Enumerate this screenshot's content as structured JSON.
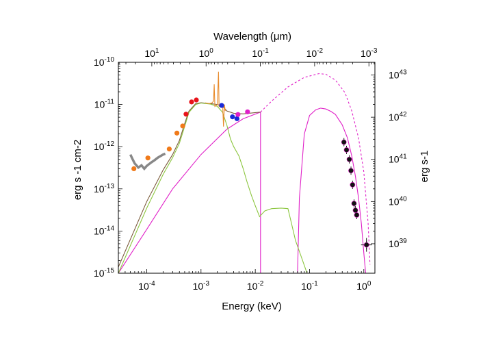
{
  "chart_data": {
    "type": "line",
    "title": "",
    "xlabel": "Energy (keV)",
    "ylabel": "erg s -1 cm-2",
    "top_xlabel": "Wavelength (μm)",
    "right_ylabel": "erg s-1",
    "x_scale": "log",
    "y_scale": "log",
    "xlim": [
      3e-05,
      1.6
    ],
    "ylim": [
      1e-15,
      1e-10
    ],
    "x_ticks": [
      {
        "value": 0.0001,
        "base": "10",
        "exp": "-4"
      },
      {
        "value": 0.001,
        "base": "10",
        "exp": "-3"
      },
      {
        "value": 0.01,
        "base": "10",
        "exp": "-2"
      },
      {
        "value": 0.1,
        "base": "10",
        "exp": "-1"
      },
      {
        "value": 1,
        "base": "10",
        "exp": "0"
      }
    ],
    "y_ticks": [
      {
        "value": 1e-15,
        "base": "10",
        "exp": "-15"
      },
      {
        "value": 1e-14,
        "base": "10",
        "exp": "-14"
      },
      {
        "value": 1e-13,
        "base": "10",
        "exp": "-13"
      },
      {
        "value": 1e-12,
        "base": "10",
        "exp": "-12"
      },
      {
        "value": 1e-11,
        "base": "10",
        "exp": "-11"
      },
      {
        "value": 1e-10,
        "base": "10",
        "exp": "-10"
      }
    ],
    "top_ticks": [
      {
        "energy": 0.000124,
        "base": "10",
        "exp": "1"
      },
      {
        "energy": 0.00124,
        "base": "10",
        "exp": "0"
      },
      {
        "energy": 0.0124,
        "base": "10",
        "exp": "-1"
      },
      {
        "energy": 0.124,
        "base": "10",
        "exp": "-2"
      },
      {
        "energy": 1.24,
        "base": "10",
        "exp": "-3"
      }
    ],
    "right_ticks": [
      {
        "flux": 5e-15,
        "base": "10",
        "exp": "39"
      },
      {
        "flux": 5e-14,
        "base": "10",
        "exp": "40"
      },
      {
        "flux": 5e-13,
        "base": "10",
        "exp": "41"
      },
      {
        "flux": 5e-12,
        "base": "10",
        "exp": "42"
      },
      {
        "flux": 5e-11,
        "base": "10",
        "exp": "43"
      }
    ],
    "series": [
      {
        "key": "disk_model",
        "color": "#e020c8",
        "dash": false,
        "points": [
          [
            3e-05,
            1e-15
          ],
          [
            0.0001,
            1.1e-14
          ],
          [
            0.0003,
            1e-13
          ],
          [
            0.001,
            6.5e-13
          ],
          [
            0.003,
            2.6e-12
          ],
          [
            0.006,
            4.6e-12
          ],
          [
            0.0125,
            6.6e-12
          ]
        ]
      },
      {
        "key": "disk_model_extrapolated",
        "color": "#e020c8",
        "dash": true,
        "points": [
          [
            0.0125,
            6.6e-12
          ],
          [
            0.02,
            1.2e-11
          ],
          [
            0.04,
            2.6e-11
          ],
          [
            0.08,
            4.4e-11
          ],
          [
            0.15,
            5.4e-11
          ],
          [
            0.2,
            5.2e-11
          ],
          [
            0.3,
            3.8e-11
          ],
          [
            0.45,
            1.9e-11
          ],
          [
            0.6,
            7e-12
          ],
          [
            0.8,
            1.6e-12
          ],
          [
            1.0,
            2.5e-13
          ],
          [
            1.2,
            1.5e-14
          ],
          [
            1.3,
            1.6e-15
          ]
        ]
      },
      {
        "key": "disk_drop",
        "color": "#e020c8",
        "dash": false,
        "points": [
          [
            0.0125,
            6.6e-12
          ],
          [
            0.0125,
            1e-15
          ]
        ]
      },
      {
        "key": "disk_absorbed",
        "color": "#e020c8",
        "dash": false,
        "points": [
          [
            0.06,
            1e-15
          ],
          [
            0.065,
            6e-14
          ],
          [
            0.08,
            2e-12
          ],
          [
            0.1,
            5.5e-12
          ],
          [
            0.13,
            7.5e-12
          ],
          [
            0.16,
            8.2e-12
          ],
          [
            0.2,
            7.8e-12
          ],
          [
            0.25,
            6.8e-12
          ],
          [
            0.3,
            5.8e-12
          ],
          [
            0.4,
            3.3e-12
          ],
          [
            0.5,
            1.6e-12
          ],
          [
            0.6,
            6e-13
          ],
          [
            0.7,
            2e-13
          ],
          [
            0.8,
            6e-14
          ],
          [
            0.9,
            1.5e-14
          ],
          [
            1.0,
            3e-15
          ],
          [
            1.08,
            1e-15
          ]
        ]
      },
      {
        "key": "host_model_dark",
        "color": "#7a5a3a",
        "dash": false,
        "points": [
          [
            3e-05,
            1.4e-15
          ],
          [
            0.0001,
            5e-14
          ],
          [
            0.0002,
            2.8e-13
          ],
          [
            0.0003,
            6.5e-13
          ],
          [
            0.0004,
            1.4e-12
          ],
          [
            0.0005,
            3.5e-12
          ],
          [
            0.0006,
            7e-12
          ],
          [
            0.0008,
            1.05e-11
          ],
          [
            0.001,
            1.1e-11
          ],
          [
            0.0015,
            1.05e-11
          ],
          [
            0.002,
            1e-11
          ],
          [
            0.0025,
            9e-12
          ],
          [
            0.003,
            7e-12
          ],
          [
            0.004,
            6.2e-12
          ],
          [
            0.006,
            6e-12
          ],
          [
            0.0125,
            6.6e-12
          ]
        ]
      },
      {
        "key": "host_model_green",
        "color": "#8cc63f",
        "dash": false,
        "points": [
          [
            3e-05,
            1e-15
          ],
          [
            0.0001,
            3.5e-14
          ],
          [
            0.0002,
            2.2e-13
          ],
          [
            0.0003,
            5.5e-13
          ],
          [
            0.0004,
            1.2e-12
          ],
          [
            0.0005,
            3e-12
          ],
          [
            0.0006,
            6.5e-12
          ],
          [
            0.0008,
            1e-11
          ],
          [
            0.001,
            1.08e-11
          ],
          [
            0.0015,
            1.02e-11
          ],
          [
            0.002,
            9e-12
          ],
          [
            0.0025,
            6.5e-12
          ],
          [
            0.003,
            3.2e-12
          ],
          [
            0.0035,
            1.5e-12
          ],
          [
            0.004,
            1e-12
          ],
          [
            0.005,
            6e-13
          ],
          [
            0.006,
            3e-13
          ],
          [
            0.007,
            1.5e-13
          ],
          [
            0.0085,
            7e-14
          ],
          [
            0.01,
            4e-14
          ],
          [
            0.012,
            2.2e-14
          ],
          [
            0.015,
            3e-14
          ],
          [
            0.02,
            3.4e-14
          ],
          [
            0.03,
            3.5e-14
          ],
          [
            0.04,
            3.4e-14
          ],
          [
            0.045,
            1.8e-14
          ],
          [
            0.055,
            6e-15
          ],
          [
            0.07,
            2.5e-15
          ],
          [
            0.09,
            1e-15
          ]
        ]
      },
      {
        "key": "ir_spectrum",
        "color": "#888888",
        "dash": false,
        "points": [
          [
            5e-05,
            6.5e-13
          ],
          [
            5.5e-05,
            5e-13
          ],
          [
            6e-05,
            4e-13
          ],
          [
            7e-05,
            3.2e-13
          ],
          [
            8e-05,
            3.6e-13
          ],
          [
            9e-05,
            3e-13
          ],
          [
            0.0001,
            3.5e-13
          ],
          [
            0.00012,
            4.2e-13
          ],
          [
            0.00014,
            4.8e-13
          ],
          [
            0.00016,
            5.5e-13
          ],
          [
            0.00018,
            6e-13
          ],
          [
            0.0002,
            6.5e-13
          ],
          [
            0.00022,
            6.8e-13
          ]
        ]
      },
      {
        "key": "opt_spectrum",
        "color": "#e88a2a",
        "dash": false,
        "points": [
          [
            0.0012,
            1.1e-11
          ],
          [
            0.0014,
            1.05e-11
          ],
          [
            0.0016,
            1.1e-11
          ],
          [
            0.0017,
            1.2e-11
          ],
          [
            0.00175,
            3e-11
          ],
          [
            0.0018,
            9e-12
          ],
          [
            0.002,
            1e-11
          ],
          [
            0.0021,
            6e-11
          ],
          [
            0.00215,
            9e-12
          ],
          [
            0.0023,
            9.5e-12
          ],
          [
            0.0025,
            1e-11
          ],
          [
            0.0026,
            3e-12
          ],
          [
            0.0027,
            1e-11
          ],
          [
            0.0028,
            7e-12
          ]
        ]
      }
    ],
    "points": [
      {
        "key": "orange",
        "color": "#f07a1a",
        "x": 5.8e-05,
        "y": 3e-13
      },
      {
        "key": "orange",
        "color": "#f07a1a",
        "x": 0.000105,
        "y": 5.4e-13
      },
      {
        "key": "orange",
        "color": "#f07a1a",
        "x": 0.00026,
        "y": 8.8e-13
      },
      {
        "key": "orange",
        "color": "#f07a1a",
        "x": 0.00036,
        "y": 2.1e-12
      },
      {
        "key": "orange",
        "color": "#f07a1a",
        "x": 0.00046,
        "y": 3.1e-12
      },
      {
        "key": "red",
        "color": "#e8141a",
        "x": 0.00053,
        "y": 5.9e-12
      },
      {
        "key": "red",
        "color": "#e8141a",
        "x": 0.00067,
        "y": 1.15e-11
      },
      {
        "key": "red",
        "color": "#e8141a",
        "x": 0.00082,
        "y": 1.28e-11
      },
      {
        "key": "blue",
        "color": "#1a2ad8",
        "x": 0.0024,
        "y": 9.5e-12
      },
      {
        "key": "blue",
        "color": "#1a2ad8",
        "x": 0.0038,
        "y": 5.1e-12
      },
      {
        "key": "blue",
        "color": "#1a2ad8",
        "x": 0.0046,
        "y": 4.6e-12
      },
      {
        "key": "magenta",
        "color": "#e020c8",
        "x": 0.0048,
        "y": 5.8e-12
      },
      {
        "key": "magenta",
        "color": "#e020c8",
        "x": 0.0072,
        "y": 6.7e-12
      },
      {
        "key": "xray",
        "color": "#111111",
        "x": 0.43,
        "y": 1.28e-12
      },
      {
        "key": "xray",
        "color": "#111111",
        "x": 0.48,
        "y": 8.4e-13
      },
      {
        "key": "xray",
        "color": "#111111",
        "x": 0.54,
        "y": 5e-13
      },
      {
        "key": "xray",
        "color": "#111111",
        "x": 0.58,
        "y": 2.7e-13
      },
      {
        "key": "xray",
        "color": "#111111",
        "x": 0.62,
        "y": 1.25e-13
      },
      {
        "key": "xray",
        "color": "#111111",
        "x": 0.66,
        "y": 4.5e-14
      },
      {
        "key": "xray",
        "color": "#111111",
        "x": 0.7,
        "y": 3.1e-14
      },
      {
        "key": "xray",
        "color": "#111111",
        "x": 0.74,
        "y": 2.4e-14
      },
      {
        "key": "xray",
        "color": "#111111",
        "x": 1.12,
        "y": 4.7e-15
      }
    ]
  }
}
